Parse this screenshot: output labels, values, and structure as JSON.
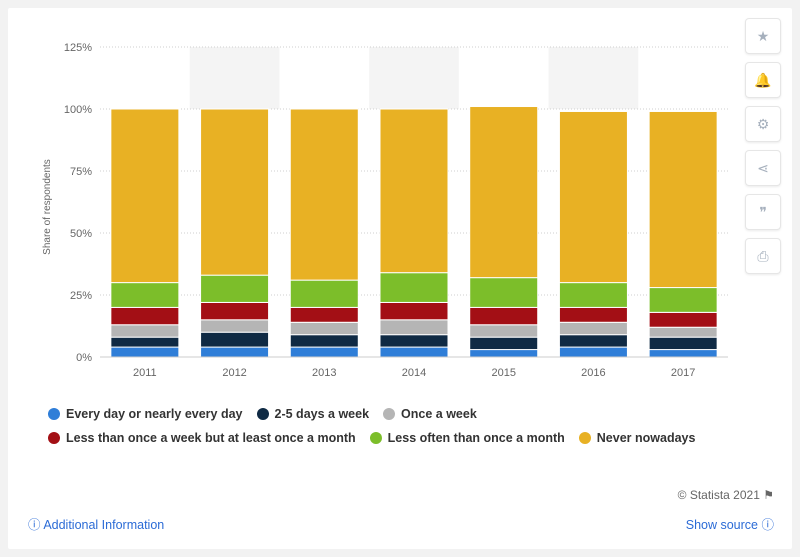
{
  "chart_data": {
    "type": "bar",
    "stacked": true,
    "categories": [
      "2011",
      "2012",
      "2013",
      "2014",
      "2015",
      "2016",
      "2017"
    ],
    "ylabel": "Share of respondents",
    "ylim": [
      0,
      125
    ],
    "yticks": [
      "0%",
      "25%",
      "50%",
      "75%",
      "100%",
      "125%"
    ],
    "grid": true,
    "legend_position": "bottom",
    "series": [
      {
        "name": "Every day or nearly every day",
        "color": "#2f7ed8",
        "values": [
          4,
          4,
          4,
          4,
          3,
          4,
          3
        ]
      },
      {
        "name": "2-5 days a week",
        "color": "#0f2a44",
        "values": [
          4,
          6,
          5,
          5,
          5,
          5,
          5
        ]
      },
      {
        "name": "Once a week",
        "color": "#b5b5b5",
        "values": [
          5,
          5,
          5,
          6,
          5,
          5,
          4
        ]
      },
      {
        "name": "Less than once a week but at least once a month",
        "color": "#a30f15",
        "values": [
          7,
          7,
          6,
          7,
          7,
          6,
          6
        ]
      },
      {
        "name": "Less often than once a month",
        "color": "#7cbe2a",
        "values": [
          10,
          11,
          11,
          12,
          12,
          10,
          10
        ]
      },
      {
        "name": "Never nowadays",
        "color": "#e8b124",
        "values": [
          70,
          67,
          69,
          66,
          69,
          69,
          71
        ]
      }
    ]
  },
  "legend": {
    "row1": [
      "Every day or nearly every day",
      "2-5 days a week",
      "Once a week"
    ],
    "row2": [
      "Less than once a week but at least once a month",
      "Less often than once a month",
      "Never nowadays"
    ]
  },
  "toolbar": {
    "icons": [
      "star-icon",
      "bell-icon",
      "gear-icon",
      "share-icon",
      "quote-icon",
      "print-icon"
    ]
  },
  "footer": {
    "credit": "© Statista 2021",
    "additional_info": "Additional Information",
    "show_source": "Show source"
  }
}
